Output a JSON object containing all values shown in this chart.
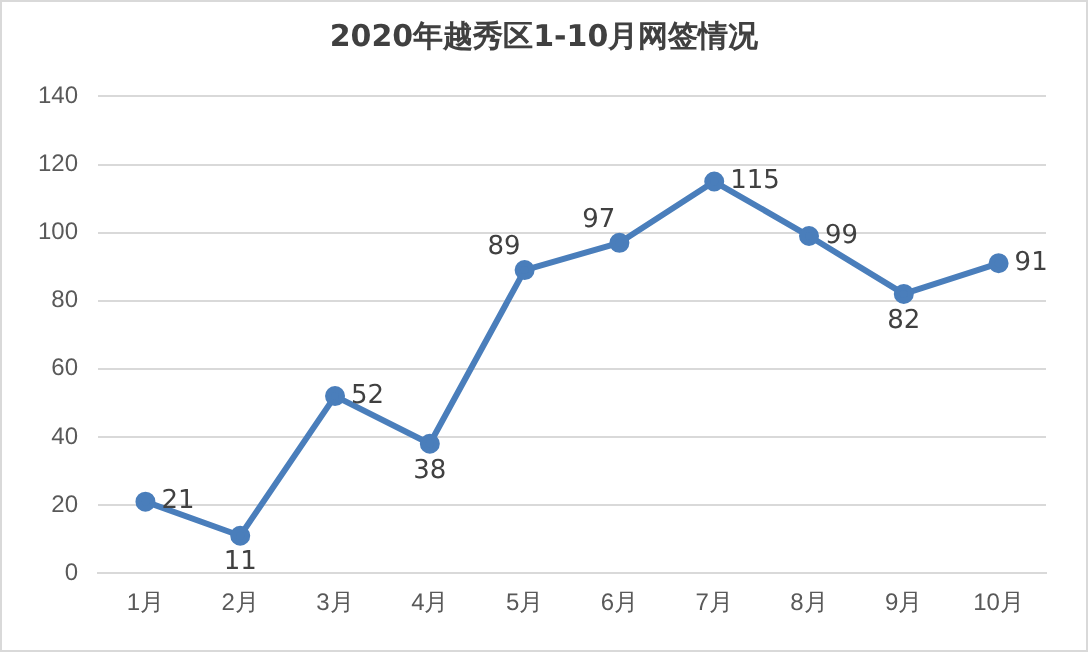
{
  "chart_data": {
    "type": "line",
    "title": "2020年越秀区1-10月网签情况",
    "categories": [
      "1月",
      "2月",
      "3月",
      "4月",
      "5月",
      "6月",
      "7月",
      "8月",
      "9月",
      "10月"
    ],
    "values": [
      21,
      11,
      52,
      38,
      89,
      97,
      115,
      99,
      82,
      91
    ],
    "color": "#4a7ebb",
    "ylim": [
      0,
      140
    ],
    "yticks": [
      0,
      20,
      40,
      60,
      80,
      100,
      120,
      140
    ],
    "grid": "y",
    "marker": "circle",
    "line_style": "solid",
    "data_labels": true,
    "legend": false
  }
}
